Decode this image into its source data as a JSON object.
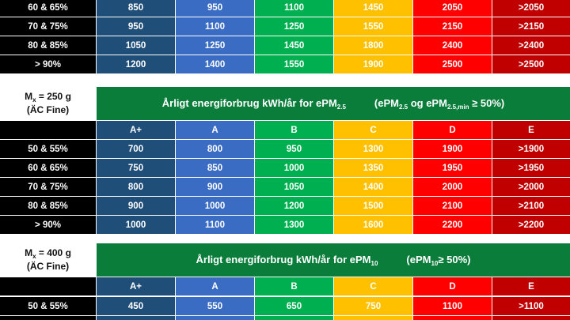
{
  "sections": [
    {
      "rows": [
        [
          "60 & 65%",
          "850",
          "950",
          "1100",
          "1450",
          "2050",
          ">2050"
        ],
        [
          "70 & 75%",
          "950",
          "1100",
          "1250",
          "1550",
          "2150",
          ">2150"
        ],
        [
          "80 & 85%",
          "1050",
          "1250",
          "1450",
          "1800",
          "2400",
          ">2400"
        ],
        [
          "> 90%",
          "1200",
          "1400",
          "1550",
          "1900",
          "2500",
          ">2500"
        ]
      ]
    },
    {
      "label": [
        {
          "t": "M"
        },
        {
          "t": "x",
          "sub": true
        },
        {
          "t": " = 250 g"
        }
      ],
      "label2": "(ÄC Fine)",
      "title": [
        {
          "t": "Årligt energiforbrug kWh/år for ePM"
        },
        {
          "t": "2.5",
          "sub": true
        }
      ],
      "note": [
        {
          "t": "(ePM"
        },
        {
          "t": "2.5",
          "sub": true
        },
        {
          "t": " og ePM"
        },
        {
          "t": "2.5,min",
          "sub": true
        },
        {
          "t": " ≥ 50%)"
        }
      ],
      "classes": [
        "A+",
        "A",
        "B",
        "C",
        "D",
        "E"
      ],
      "rows": [
        [
          "50 & 55%",
          "700",
          "800",
          "950",
          "1300",
          "1900",
          ">1900"
        ],
        [
          "60 & 65%",
          "750",
          "850",
          "1000",
          "1350",
          "1950",
          ">1950"
        ],
        [
          "70 & 75%",
          "800",
          "900",
          "1050",
          "1400",
          "2000",
          ">2000"
        ],
        [
          "80 & 85%",
          "900",
          "1000",
          "1200",
          "1500",
          "2100",
          ">2100"
        ],
        [
          "> 90%",
          "1000",
          "1100",
          "1300",
          "1600",
          "2200",
          ">2200"
        ]
      ]
    },
    {
      "label": [
        {
          "t": "M"
        },
        {
          "t": "x",
          "sub": true
        },
        {
          "t": " = 400 g"
        }
      ],
      "label2": "(ÄC Fine)",
      "title": [
        {
          "t": "Årligt energiforbrug kWh/år for ePM"
        },
        {
          "t": "10",
          "sub": true
        }
      ],
      "note": [
        {
          "t": "(ePM"
        },
        {
          "t": "10",
          "sub": true
        },
        {
          "t": "≥ 50%)"
        }
      ],
      "classes": [
        "A+",
        "A",
        "B",
        "C",
        "D",
        "E"
      ],
      "rows": [
        [
          "50 & 55%",
          "450",
          "550",
          "650",
          "750",
          "1100",
          ">1100"
        ]
      ]
    }
  ]
}
